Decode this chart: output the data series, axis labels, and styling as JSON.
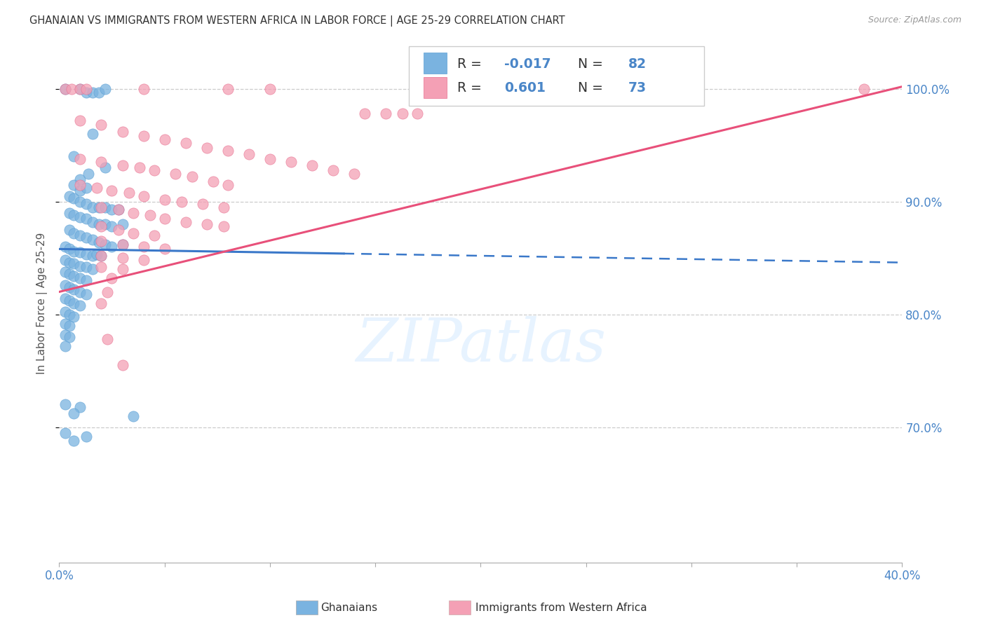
{
  "title": "GHANAIAN VS IMMIGRANTS FROM WESTERN AFRICA IN LABOR FORCE | AGE 25-29 CORRELATION CHART",
  "source": "Source: ZipAtlas.com",
  "ylabel": "In Labor Force | Age 25-29",
  "x_min": 0.0,
  "x_max": 0.4,
  "y_min": 0.58,
  "y_max": 1.04,
  "x_ticks": [
    0.0,
    0.05,
    0.1,
    0.15,
    0.2,
    0.25,
    0.3,
    0.35,
    0.4
  ],
  "y_ticks_right": [
    0.7,
    0.8,
    0.9,
    1.0
  ],
  "y_tick_labels_right": [
    "70.0%",
    "80.0%",
    "90.0%",
    "100.0%"
  ],
  "ghanaian_color": "#7ab3e0",
  "immigrant_color": "#f4a0b5",
  "ghanaian_edge": "#5a9fd4",
  "immigrant_edge": "#e87090",
  "blue_line_color": "#3a78c9",
  "pink_line_color": "#e8507a",
  "blue_line_solid_end": 0.135,
  "gh_line_intercept": 0.858,
  "gh_line_slope": -0.03,
  "im_line_intercept": 0.82,
  "im_line_slope": 0.455,
  "legend_R1": "-0.017",
  "legend_N1": "82",
  "legend_R2": "0.601",
  "legend_N2": "73",
  "watermark_text": "ZIPatlas",
  "watermark_color": "#ddeeff",
  "ghanaian_scatter": [
    [
      0.003,
      1.0
    ],
    [
      0.01,
      1.0
    ],
    [
      0.013,
      0.997
    ],
    [
      0.016,
      0.997
    ],
    [
      0.019,
      0.997
    ],
    [
      0.022,
      1.0
    ],
    [
      0.016,
      0.96
    ],
    [
      0.007,
      0.94
    ],
    [
      0.022,
      0.93
    ],
    [
      0.01,
      0.92
    ],
    [
      0.014,
      0.925
    ],
    [
      0.007,
      0.915
    ],
    [
      0.01,
      0.91
    ],
    [
      0.013,
      0.912
    ],
    [
      0.005,
      0.905
    ],
    [
      0.007,
      0.903
    ],
    [
      0.01,
      0.9
    ],
    [
      0.013,
      0.898
    ],
    [
      0.016,
      0.895
    ],
    [
      0.019,
      0.895
    ],
    [
      0.022,
      0.895
    ],
    [
      0.025,
      0.893
    ],
    [
      0.028,
      0.893
    ],
    [
      0.005,
      0.89
    ],
    [
      0.007,
      0.888
    ],
    [
      0.01,
      0.886
    ],
    [
      0.013,
      0.885
    ],
    [
      0.016,
      0.882
    ],
    [
      0.019,
      0.88
    ],
    [
      0.022,
      0.88
    ],
    [
      0.025,
      0.878
    ],
    [
      0.03,
      0.88
    ],
    [
      0.005,
      0.875
    ],
    [
      0.007,
      0.872
    ],
    [
      0.01,
      0.87
    ],
    [
      0.013,
      0.868
    ],
    [
      0.016,
      0.866
    ],
    [
      0.019,
      0.864
    ],
    [
      0.022,
      0.862
    ],
    [
      0.025,
      0.86
    ],
    [
      0.03,
      0.862
    ],
    [
      0.003,
      0.86
    ],
    [
      0.005,
      0.858
    ],
    [
      0.007,
      0.856
    ],
    [
      0.01,
      0.855
    ],
    [
      0.013,
      0.853
    ],
    [
      0.016,
      0.852
    ],
    [
      0.018,
      0.853
    ],
    [
      0.02,
      0.852
    ],
    [
      0.003,
      0.848
    ],
    [
      0.005,
      0.846
    ],
    [
      0.007,
      0.845
    ],
    [
      0.01,
      0.843
    ],
    [
      0.013,
      0.842
    ],
    [
      0.016,
      0.84
    ],
    [
      0.003,
      0.838
    ],
    [
      0.005,
      0.836
    ],
    [
      0.007,
      0.834
    ],
    [
      0.01,
      0.832
    ],
    [
      0.013,
      0.83
    ],
    [
      0.003,
      0.826
    ],
    [
      0.005,
      0.824
    ],
    [
      0.007,
      0.822
    ],
    [
      0.01,
      0.82
    ],
    [
      0.013,
      0.818
    ],
    [
      0.003,
      0.814
    ],
    [
      0.005,
      0.812
    ],
    [
      0.007,
      0.81
    ],
    [
      0.01,
      0.808
    ],
    [
      0.003,
      0.802
    ],
    [
      0.005,
      0.8
    ],
    [
      0.007,
      0.798
    ],
    [
      0.003,
      0.792
    ],
    [
      0.005,
      0.79
    ],
    [
      0.003,
      0.782
    ],
    [
      0.005,
      0.78
    ],
    [
      0.003,
      0.772
    ],
    [
      0.003,
      0.72
    ],
    [
      0.01,
      0.718
    ],
    [
      0.007,
      0.712
    ],
    [
      0.035,
      0.71
    ],
    [
      0.003,
      0.695
    ],
    [
      0.013,
      0.692
    ],
    [
      0.007,
      0.688
    ]
  ],
  "immigrant_scatter": [
    [
      0.003,
      1.0
    ],
    [
      0.006,
      1.0
    ],
    [
      0.01,
      1.0
    ],
    [
      0.013,
      1.0
    ],
    [
      0.04,
      1.0
    ],
    [
      0.08,
      1.0
    ],
    [
      0.1,
      1.0
    ],
    [
      0.145,
      0.978
    ],
    [
      0.155,
      0.978
    ],
    [
      0.163,
      0.978
    ],
    [
      0.17,
      0.978
    ],
    [
      0.382,
      1.0
    ],
    [
      0.01,
      0.972
    ],
    [
      0.02,
      0.968
    ],
    [
      0.03,
      0.962
    ],
    [
      0.04,
      0.958
    ],
    [
      0.05,
      0.955
    ],
    [
      0.06,
      0.952
    ],
    [
      0.07,
      0.948
    ],
    [
      0.08,
      0.945
    ],
    [
      0.09,
      0.942
    ],
    [
      0.1,
      0.938
    ],
    [
      0.11,
      0.935
    ],
    [
      0.12,
      0.932
    ],
    [
      0.13,
      0.928
    ],
    [
      0.14,
      0.925
    ],
    [
      0.01,
      0.938
    ],
    [
      0.02,
      0.935
    ],
    [
      0.03,
      0.932
    ],
    [
      0.038,
      0.93
    ],
    [
      0.045,
      0.928
    ],
    [
      0.055,
      0.925
    ],
    [
      0.063,
      0.922
    ],
    [
      0.073,
      0.918
    ],
    [
      0.08,
      0.915
    ],
    [
      0.01,
      0.915
    ],
    [
      0.018,
      0.912
    ],
    [
      0.025,
      0.91
    ],
    [
      0.033,
      0.908
    ],
    [
      0.04,
      0.905
    ],
    [
      0.05,
      0.902
    ],
    [
      0.058,
      0.9
    ],
    [
      0.068,
      0.898
    ],
    [
      0.078,
      0.895
    ],
    [
      0.02,
      0.895
    ],
    [
      0.028,
      0.893
    ],
    [
      0.035,
      0.89
    ],
    [
      0.043,
      0.888
    ],
    [
      0.05,
      0.885
    ],
    [
      0.06,
      0.882
    ],
    [
      0.07,
      0.88
    ],
    [
      0.078,
      0.878
    ],
    [
      0.02,
      0.878
    ],
    [
      0.028,
      0.875
    ],
    [
      0.035,
      0.872
    ],
    [
      0.045,
      0.87
    ],
    [
      0.02,
      0.865
    ],
    [
      0.03,
      0.862
    ],
    [
      0.04,
      0.86
    ],
    [
      0.05,
      0.858
    ],
    [
      0.02,
      0.852
    ],
    [
      0.03,
      0.85
    ],
    [
      0.04,
      0.848
    ],
    [
      0.02,
      0.842
    ],
    [
      0.03,
      0.84
    ],
    [
      0.025,
      0.832
    ],
    [
      0.023,
      0.82
    ],
    [
      0.02,
      0.81
    ],
    [
      0.023,
      0.778
    ],
    [
      0.03,
      0.755
    ]
  ]
}
